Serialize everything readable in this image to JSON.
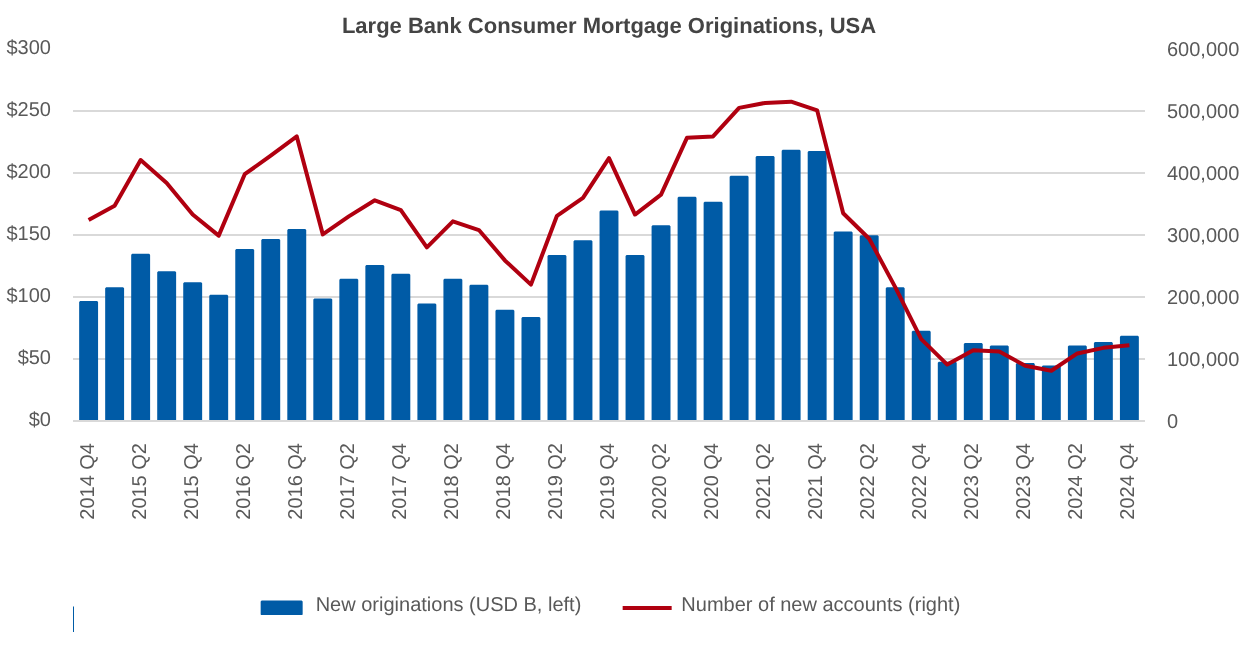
{
  "chart_data": {
    "type": "bar",
    "title": "Large Bank Consumer Mortgage Originations, USA",
    "categories": [
      "2014 Q4",
      null,
      "2015 Q2",
      null,
      "2015 Q4",
      null,
      "2016 Q2",
      null,
      "2016 Q4",
      null,
      "2017 Q2",
      null,
      "2017 Q4",
      null,
      "2018 Q2",
      null,
      "2018 Q4",
      null,
      "2019 Q2",
      null,
      "2019 Q4",
      null,
      "2020 Q2",
      null,
      "2020 Q4",
      null,
      "2021 Q2",
      null,
      "2021 Q4",
      null,
      "2022 Q2",
      null,
      "2022 Q4",
      null,
      "2023 Q2",
      null,
      "2023 Q4",
      null,
      "2024 Q2",
      null,
      "2024 Q4"
    ],
    "series": [
      {
        "name": "New originations (USD B, left)",
        "color": "#005ba6",
        "values": [
          96,
          107,
          134,
          120,
          111,
          101,
          138,
          146,
          154,
          98,
          114,
          125,
          118,
          94,
          114,
          109,
          89,
          83,
          133,
          145,
          169,
          133,
          157,
          180,
          176,
          197,
          213,
          218,
          217,
          152,
          149,
          107,
          72,
          47,
          62,
          60,
          46,
          44,
          60,
          63,
          68
        ]
      },
      {
        "name": "Number of new accounts (right)",
        "type": "line",
        "axis": "y2",
        "color": "#b00010",
        "values": [
          324000,
          347000,
          421000,
          384000,
          333000,
          299000,
          398000,
          428000,
          459000,
          301000,
          330000,
          356000,
          340000,
          280000,
          322000,
          308000,
          259000,
          220000,
          331000,
          360000,
          424000,
          333000,
          365000,
          457000,
          459000,
          505000,
          513000,
          515000,
          501000,
          335000,
          294000,
          216000,
          132000,
          91000,
          114000,
          112000,
          89000,
          81000,
          109000,
          118000,
          122000
        ]
      }
    ],
    "ylim": [
      0,
      300
    ],
    "yticks": [
      {
        "value": 0,
        "label": "$0"
      },
      {
        "value": 50,
        "label": "$50"
      },
      {
        "value": 100,
        "label": "$100"
      },
      {
        "value": 150,
        "label": "$150"
      },
      {
        "value": 200,
        "label": "$200"
      },
      {
        "value": 250,
        "label": "$250"
      },
      {
        "value": 300,
        "label": "$300"
      }
    ],
    "y2lim": [
      0,
      600000
    ],
    "y2ticks": [
      0,
      {
        "value": 100000,
        "label": "100,000"
      },
      {
        "value": 200000,
        "label": "200,000"
      },
      {
        "value": 300000,
        "label": "300,000"
      },
      {
        "value": 400000,
        "label": "400,000"
      },
      {
        "value": 500000,
        "label": "500,000"
      },
      {
        "value": 600000,
        "label": "600,000"
      }
    ],
    "grid": "y",
    "legend": "bottom",
    "marker": "none",
    "line_style": "solid"
  }
}
